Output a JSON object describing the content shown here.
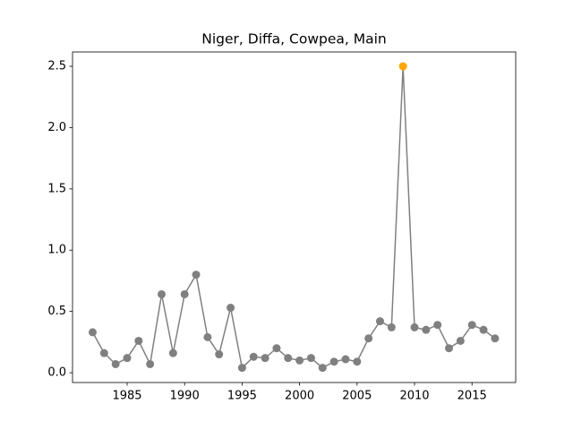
{
  "chart_data": {
    "type": "line",
    "title": "Niger, Diffa, Cowpea, Main",
    "x": [
      1982,
      1983,
      1984,
      1985,
      1986,
      1987,
      1988,
      1989,
      1990,
      1991,
      1992,
      1993,
      1994,
      1995,
      1996,
      1997,
      1998,
      1999,
      2000,
      2001,
      2002,
      2003,
      2004,
      2005,
      2006,
      2007,
      2008,
      2009,
      2010,
      2011,
      2012,
      2013,
      2014,
      2015,
      2016,
      2017
    ],
    "series": [
      {
        "color": "#808080",
        "values": [
          0.33,
          0.16,
          0.07,
          0.12,
          0.26,
          0.07,
          0.64,
          0.16,
          0.64,
          0.8,
          0.29,
          0.15,
          0.53,
          0.04,
          0.13,
          0.12,
          0.2,
          0.12,
          0.1,
          0.12,
          0.04,
          0.09,
          0.11,
          0.09,
          0.28,
          0.42,
          0.37,
          2.5,
          0.37,
          0.35,
          0.39,
          0.2,
          0.26,
          0.39,
          0.35,
          0.28
        ],
        "marker_colors": [
          "#808080",
          "#808080",
          "#808080",
          "#808080",
          "#808080",
          "#808080",
          "#808080",
          "#808080",
          "#808080",
          "#808080",
          "#808080",
          "#808080",
          "#808080",
          "#808080",
          "#808080",
          "#808080",
          "#808080",
          "#808080",
          "#808080",
          "#808080",
          "#808080",
          "#808080",
          "#808080",
          "#808080",
          "#808080",
          "#808080",
          "#808080",
          "#ffa500",
          "#808080",
          "#808080",
          "#808080",
          "#808080",
          "#808080",
          "#808080",
          "#808080",
          "#808080"
        ]
      }
    ],
    "xlim": [
      1980.25,
      2018.8
    ],
    "ylim": [
      -0.08,
      2.617
    ],
    "xticks": [
      1985,
      1990,
      1995,
      2000,
      2005,
      2010,
      2015
    ],
    "yticks": [
      {
        "value": 0,
        "label": "0.0"
      },
      {
        "value": 0.5,
        "label": "0.5"
      },
      {
        "value": 1,
        "label": "1.0"
      },
      {
        "value": 1.5,
        "label": "1.5"
      },
      {
        "value": 2,
        "label": "2.0"
      },
      {
        "value": 2.5,
        "label": "2.5"
      }
    ]
  }
}
